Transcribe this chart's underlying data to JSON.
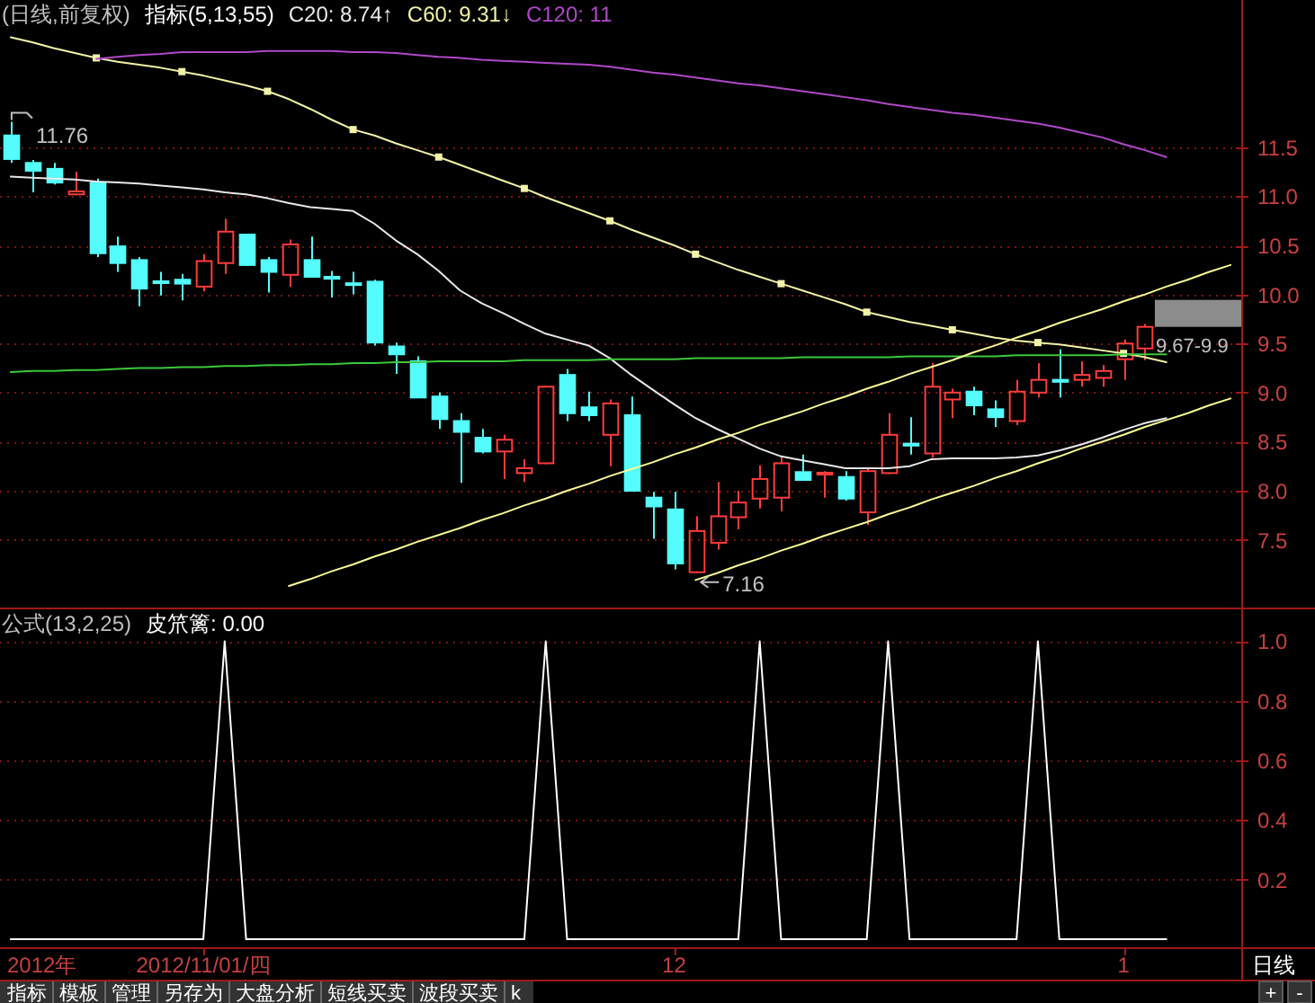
{
  "chart_data": [
    {
      "type": "candlestick",
      "title": "(日线,前复权)",
      "subtitle": "指标(5,13,55)",
      "categories": [
        null,
        null,
        null,
        null,
        null,
        null,
        null,
        null,
        null,
        null,
        null,
        null,
        null,
        null,
        null,
        null,
        null,
        null,
        null,
        null,
        null,
        null,
        null,
        null,
        null,
        null,
        null,
        null,
        null,
        null,
        null,
        null,
        null,
        null,
        null,
        null,
        null,
        null,
        null,
        null,
        null,
        null,
        null,
        null,
        null,
        null,
        null,
        null,
        null,
        null,
        null,
        null,
        null,
        null,
        null,
        null,
        null,
        null
      ],
      "ohlc": [
        [
          11.62,
          11.76,
          11.34,
          11.38
        ],
        [
          11.34,
          11.37,
          11.04,
          11.26
        ],
        [
          11.28,
          11.34,
          11.12,
          11.14
        ],
        [
          11.02,
          11.25,
          11.01,
          11.05
        ],
        [
          11.14,
          11.18,
          10.38,
          10.42
        ],
        [
          10.49,
          10.59,
          10.23,
          10.32
        ],
        [
          10.35,
          10.38,
          9.88,
          10.06
        ],
        [
          10.13,
          10.23,
          9.99,
          10.12
        ],
        [
          10.15,
          10.21,
          9.94,
          10.11
        ],
        [
          10.08,
          10.41,
          10.03,
          10.34
        ],
        [
          10.32,
          10.77,
          10.21,
          10.64
        ],
        [
          10.61,
          10.62,
          10.29,
          10.3
        ],
        [
          10.35,
          10.38,
          10.02,
          10.23
        ],
        [
          10.2,
          10.56,
          10.08,
          10.51
        ],
        [
          10.35,
          10.59,
          10.18,
          10.18
        ],
        [
          10.18,
          10.24,
          9.97,
          10.16
        ],
        [
          10.11,
          10.23,
          10.0,
          10.1
        ],
        [
          10.13,
          10.15,
          9.48,
          9.51
        ],
        [
          9.47,
          9.51,
          9.19,
          9.39
        ],
        [
          9.32,
          9.37,
          8.95,
          8.95
        ],
        [
          8.96,
          9.0,
          8.63,
          8.73
        ],
        [
          8.71,
          8.79,
          8.08,
          8.6
        ],
        [
          8.54,
          8.63,
          8.38,
          8.4
        ],
        [
          8.4,
          8.57,
          8.12,
          8.52
        ],
        [
          8.18,
          8.32,
          8.09,
          8.23
        ],
        [
          8.28,
          9.07,
          8.27,
          9.06
        ],
        [
          9.18,
          9.24,
          8.71,
          8.79
        ],
        [
          8.85,
          9.01,
          8.71,
          8.77
        ],
        [
          8.57,
          8.93,
          8.25,
          8.89
        ],
        [
          8.77,
          8.96,
          8.0,
          8.0
        ],
        [
          7.93,
          7.99,
          7.51,
          7.84
        ],
        [
          7.81,
          7.99,
          7.2,
          7.26
        ],
        [
          7.17,
          7.74,
          7.16,
          7.59
        ],
        [
          7.47,
          8.09,
          7.4,
          7.74
        ],
        [
          7.73,
          8.0,
          7.61,
          7.88
        ],
        [
          7.92,
          8.26,
          7.82,
          8.12
        ],
        [
          7.93,
          8.36,
          7.79,
          8.28
        ],
        [
          8.19,
          8.37,
          8.11,
          8.11
        ],
        [
          8.17,
          8.2,
          7.93,
          8.18
        ],
        [
          8.14,
          8.2,
          7.9,
          7.92
        ],
        [
          7.78,
          8.23,
          7.65,
          8.2
        ],
        [
          8.18,
          8.79,
          8.17,
          8.57
        ],
        [
          8.48,
          8.75,
          8.37,
          8.46
        ],
        [
          8.38,
          9.3,
          8.34,
          9.06
        ],
        [
          8.93,
          9.04,
          8.74,
          9.0
        ],
        [
          9.01,
          9.06,
          8.77,
          8.87
        ],
        [
          8.83,
          8.92,
          8.65,
          8.75
        ],
        [
          8.71,
          9.13,
          8.67,
          9.01
        ],
        [
          9.0,
          9.3,
          8.95,
          9.13
        ],
        [
          9.13,
          9.44,
          8.95,
          9.11
        ],
        [
          9.13,
          9.32,
          9.06,
          9.18
        ],
        [
          9.15,
          9.28,
          9.06,
          9.22
        ],
        [
          9.34,
          9.54,
          9.13,
          9.5
        ],
        [
          9.45,
          9.7,
          9.33,
          9.67
        ],
        null,
        null,
        null,
        null
      ],
      "colors": [
        "#54fcfc",
        "#54fcfc",
        "#54fcfc",
        "#ff3c3c",
        "#54fcfc",
        "#54fcfc",
        "#54fcfc",
        "#54fcfc",
        "#54fcfc",
        "#ff3c3c",
        "#ff3c3c",
        "#54fcfc",
        "#54fcfc",
        "#ff3c3c",
        "#54fcfc",
        "#54fcfc",
        "#54fcfc",
        "#54fcfc",
        "#54fcfc",
        "#54fcfc",
        "#54fcfc",
        "#54fcfc",
        "#54fcfc",
        "#ff3c3c",
        "#ff3c3c",
        "#ff3c3c",
        "#54fcfc",
        "#54fcfc",
        "#ff3c3c",
        "#54fcfc",
        "#54fcfc",
        "#54fcfc",
        "#ff3c3c",
        "#ff3c3c",
        "#ff3c3c",
        "#ff3c3c",
        "#ff3c3c",
        "#54fcfc",
        "#ff3c3c",
        "#54fcfc",
        "#ff3c3c",
        "#ff3c3c",
        "#54fcfc",
        "#ff3c3c",
        "#ff3c3c",
        "#54fcfc",
        "#54fcfc",
        "#ff3c3c",
        "#ff3c3c",
        "#54fcfc",
        "#ff3c3c",
        "#ff3c3c",
        "#ff3c3c",
        "#ff3c3c",
        null,
        null,
        null,
        null
      ],
      "series": [
        {
          "name": "C20: 8.74↑",
          "type": "line",
          "color": "#e8e8e8",
          "values": [
            11.2,
            11.19,
            11.18,
            11.17,
            11.15,
            11.14,
            11.13,
            11.11,
            11.09,
            11.07,
            11.04,
            11.02,
            10.98,
            10.93,
            10.89,
            10.87,
            10.85,
            10.72,
            10.55,
            10.41,
            10.24,
            10.04,
            9.91,
            9.81,
            9.7,
            9.6,
            9.54,
            9.48,
            9.35,
            9.18,
            9.03,
            8.88,
            8.74,
            8.63,
            8.53,
            8.43,
            8.35,
            8.31,
            8.27,
            8.23,
            8.23,
            8.23,
            8.25,
            8.32,
            8.33,
            8.33,
            8.33,
            8.34,
            8.36,
            8.41,
            8.47,
            8.54,
            8.62,
            8.69,
            8.74,
            null,
            null,
            null
          ]
        },
        {
          "name": "C60: 9.31↓",
          "type": "line",
          "color": "#f2f2a8",
          "values": [
            12.62,
            12.57,
            12.51,
            12.46,
            12.41,
            12.37,
            12.34,
            12.31,
            12.27,
            12.23,
            12.18,
            12.13,
            12.07,
            11.99,
            11.89,
            11.78,
            11.68,
            11.62,
            11.54,
            11.47,
            11.4,
            11.32,
            11.24,
            11.16,
            11.08,
            10.99,
            10.91,
            10.83,
            10.75,
            10.66,
            10.58,
            10.5,
            10.41,
            10.33,
            10.25,
            10.18,
            10.11,
            10.04,
            9.97,
            9.9,
            9.82,
            9.77,
            9.72,
            9.68,
            9.64,
            9.6,
            9.56,
            9.53,
            9.51,
            9.49,
            9.46,
            9.43,
            9.4,
            9.36,
            9.31,
            null,
            null,
            null
          ]
        },
        {
          "type": "scatter",
          "marker": "square",
          "color": "#f2f2a8",
          "values": [
            null,
            null,
            null,
            null,
            12.41,
            null,
            null,
            null,
            12.27,
            null,
            null,
            null,
            12.07,
            null,
            null,
            null,
            11.68,
            null,
            null,
            null,
            11.4,
            null,
            null,
            null,
            11.08,
            null,
            null,
            null,
            10.75,
            null,
            null,
            null,
            10.41,
            null,
            null,
            null,
            10.11,
            null,
            null,
            null,
            9.82,
            null,
            null,
            null,
            9.64,
            null,
            null,
            null,
            9.51,
            null,
            null,
            null,
            9.4,
            null,
            null,
            null,
            null,
            null
          ]
        },
        {
          "name": "C120: 11",
          "type": "line",
          "color": "#b048c8",
          "values": [
            null,
            null,
            null,
            null,
            12.4,
            12.42,
            12.44,
            12.45,
            12.47,
            12.47,
            12.47,
            12.47,
            12.48,
            12.48,
            12.48,
            12.48,
            12.47,
            12.47,
            12.46,
            12.44,
            12.42,
            12.41,
            12.39,
            12.38,
            12.37,
            12.36,
            12.35,
            12.34,
            12.32,
            12.29,
            12.26,
            12.24,
            12.21,
            12.18,
            12.15,
            12.13,
            12.1,
            12.07,
            12.04,
            12.01,
            11.98,
            11.94,
            11.91,
            11.88,
            11.85,
            11.83,
            11.8,
            11.77,
            11.74,
            11.7,
            11.65,
            11.6,
            11.53,
            11.47,
            11.4,
            null,
            null,
            null
          ]
        },
        {
          "type": "line",
          "color": "#3cc83c",
          "values": [
            9.21,
            9.22,
            9.22,
            9.23,
            9.23,
            9.24,
            9.25,
            9.25,
            9.26,
            9.26,
            9.27,
            9.27,
            9.28,
            9.28,
            9.29,
            9.29,
            9.3,
            9.3,
            9.31,
            9.31,
            9.32,
            9.32,
            9.32,
            9.32,
            9.33,
            9.33,
            9.33,
            9.33,
            9.34,
            9.34,
            9.34,
            9.34,
            9.35,
            9.35,
            9.35,
            9.35,
            9.35,
            9.36,
            9.36,
            9.36,
            9.36,
            9.36,
            9.37,
            9.37,
            9.37,
            9.37,
            9.37,
            9.38,
            9.38,
            9.38,
            9.38,
            9.38,
            9.39,
            9.39,
            9.39,
            null,
            null,
            null
          ]
        },
        {
          "type": "line",
          "color": "#fafa96",
          "values": [
            null,
            null,
            null,
            null,
            null,
            null,
            null,
            null,
            null,
            null,
            null,
            null,
            null,
            7.03,
            7.1,
            7.18,
            7.25,
            7.33,
            7.4,
            7.48,
            7.55,
            7.62,
            7.7,
            7.77,
            7.85,
            7.92,
            8.0,
            8.07,
            8.15,
            8.22,
            8.29,
            8.37,
            8.44,
            8.52,
            8.59,
            8.67,
            8.74,
            8.81,
            8.89,
            8.96,
            9.04,
            9.11,
            9.19,
            9.26,
            9.33,
            9.41,
            9.48,
            9.56,
            9.63,
            9.71,
            9.78,
            9.85,
            9.93,
            10.0,
            10.08,
            10.15,
            10.23,
            10.3
          ]
        },
        {
          "type": "line",
          "color": "#fafa96",
          "values": [
            null,
            null,
            null,
            null,
            null,
            null,
            null,
            null,
            null,
            null,
            null,
            null,
            null,
            null,
            null,
            null,
            null,
            null,
            null,
            null,
            null,
            null,
            null,
            null,
            null,
            null,
            null,
            null,
            null,
            null,
            null,
            null,
            7.09,
            7.16,
            7.24,
            7.31,
            7.39,
            7.46,
            7.54,
            7.61,
            7.68,
            7.76,
            7.83,
            7.91,
            7.98,
            8.05,
            8.13,
            8.2,
            8.28,
            8.35,
            8.43,
            8.5,
            8.57,
            8.65,
            8.72,
            8.79,
            8.87,
            8.94
          ]
        }
      ],
      "ylim": [
        6.81,
        13.0
      ],
      "yticks": [
        7.5,
        {
          "value": 8,
          "label": "8.0"
        },
        8.5,
        {
          "value": 9,
          "label": "9.0"
        },
        9.5,
        {
          "value": 10,
          "label": "10.0"
        },
        10.5,
        {
          "value": 11,
          "label": "11.0"
        },
        11.5
      ],
      "grid": "y",
      "legend": "top left",
      "tick_labels": "y",
      "annotations": [
        "11.76",
        {
          "text": "7.16",
          "y": 7.16
        },
        "9.67-9.9"
      ]
    },
    {
      "type": "line",
      "title": "公式(13,2,25)",
      "xlabel": "日线",
      "categories": [
        null,
        null,
        null,
        null,
        null,
        null,
        null,
        null,
        null,
        "2012/11/01/四",
        null,
        null,
        null,
        null,
        null,
        null,
        null,
        null,
        null,
        null,
        null,
        null,
        null,
        null,
        null,
        null,
        null,
        null,
        null,
        null,
        null,
        "12",
        null,
        null,
        null,
        null,
        null,
        null,
        null,
        null,
        null,
        null,
        null,
        null,
        null,
        null,
        null,
        null,
        null,
        null,
        null,
        null,
        "1",
        null,
        null,
        null,
        null,
        null
      ],
      "series": [
        {
          "name": "皮笊篱: 0.00",
          "color": "#ffffff",
          "values": [
            0,
            0,
            0,
            0,
            0,
            0,
            0,
            0,
            0,
            0,
            1,
            0,
            0,
            0,
            0,
            0,
            0,
            0,
            0,
            0,
            0,
            0,
            0,
            0,
            0,
            1,
            0,
            0,
            0,
            0,
            0,
            0,
            0,
            0,
            0,
            1,
            0,
            0,
            0,
            0,
            0,
            1,
            0,
            0,
            0,
            0,
            0,
            0,
            1,
            0,
            0,
            0,
            0,
            0,
            0,
            null,
            null,
            null
          ]
        }
      ],
      "ylim": [
        -0.03,
        1.11
      ],
      "yticks": [
        0.2,
        0.4,
        0.6,
        0.8,
        {
          "value": 1,
          "label": "1.0"
        }
      ],
      "grid": "y",
      "legend": "top left",
      "annotations": [
        "2012年"
      ]
    },
    {
      "type": "other",
      "annotations": [
        "指标",
        "模板",
        "管理",
        "另存为",
        "大盘分析",
        "短线买卖",
        "波段买卖",
        "k"
      ]
    },
    {
      "type": "other",
      "annotations": [
        "+",
        "-"
      ]
    }
  ]
}
